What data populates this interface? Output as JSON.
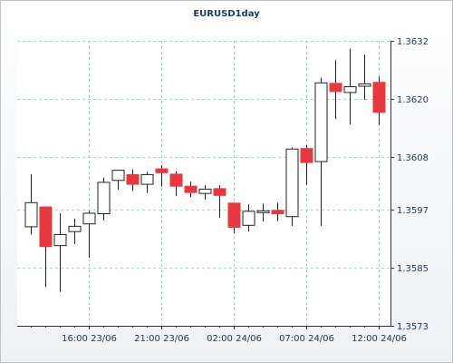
{
  "chart_data": {
    "type": "candlestick",
    "title": "EURUSD1day",
    "grid": true,
    "y_ticks": [
      1.3573,
      1.3585,
      1.3597,
      1.3608,
      1.362,
      1.3632
    ],
    "y_tick_labels": [
      "1.3573",
      "1.3585",
      "1.3597",
      "1.3608",
      "1.3620",
      "1.3632"
    ],
    "ylim": [
      1.3573,
      1.3632
    ],
    "x_tick_labels": [
      "16:00 23/06",
      "21:00 23/06",
      "02:00 24/06",
      "07:00 24/06",
      "12:00 24/06"
    ],
    "colors": {
      "up": "#ffffff",
      "down": "#e8383d",
      "border": "#222222",
      "grid": "#9fd6d8"
    },
    "candles": [
      {
        "o": 1.35935,
        "h": 1.36044,
        "l": 1.35919,
        "c": 1.35985
      },
      {
        "o": 1.35976,
        "h": 1.35977,
        "l": 1.3581,
        "c": 1.35894
      },
      {
        "o": 1.35896,
        "h": 1.35963,
        "l": 1.358,
        "c": 1.35919
      },
      {
        "o": 1.35925,
        "h": 1.35952,
        "l": 1.35899,
        "c": 1.35936
      },
      {
        "o": 1.35941,
        "h": 1.35968,
        "l": 1.35871,
        "c": 1.35963
      },
      {
        "o": 1.35962,
        "h": 1.36037,
        "l": 1.35948,
        "c": 1.36027
      },
      {
        "o": 1.36031,
        "h": 1.36053,
        "l": 1.36012,
        "c": 1.36052
      },
      {
        "o": 1.36043,
        "h": 1.36054,
        "l": 1.36009,
        "c": 1.36023
      },
      {
        "o": 1.36023,
        "h": 1.36049,
        "l": 1.36005,
        "c": 1.36043
      },
      {
        "o": 1.36055,
        "h": 1.36063,
        "l": 1.36018,
        "c": 1.36047
      },
      {
        "o": 1.36044,
        "h": 1.3605,
        "l": 1.35999,
        "c": 1.36019
      },
      {
        "o": 1.36019,
        "h": 1.36029,
        "l": 1.35996,
        "c": 1.36006
      },
      {
        "o": 1.36004,
        "h": 1.36021,
        "l": 1.35992,
        "c": 1.36013
      },
      {
        "o": 1.36014,
        "h": 1.36021,
        "l": 1.35954,
        "c": 1.36
      },
      {
        "o": 1.35984,
        "h": 1.35985,
        "l": 1.35922,
        "c": 1.35934
      },
      {
        "o": 1.35938,
        "h": 1.35982,
        "l": 1.35925,
        "c": 1.35967
      },
      {
        "o": 1.35965,
        "h": 1.35983,
        "l": 1.35946,
        "c": 1.35968
      },
      {
        "o": 1.35969,
        "h": 1.35985,
        "l": 1.35947,
        "c": 1.35962
      },
      {
        "o": 1.35956,
        "h": 1.36099,
        "l": 1.35937,
        "c": 1.36096
      },
      {
        "o": 1.36097,
        "h": 1.36104,
        "l": 1.36022,
        "c": 1.36068
      },
      {
        "o": 1.3607,
        "h": 1.36244,
        "l": 1.35937,
        "c": 1.36233
      },
      {
        "o": 1.36232,
        "h": 1.3628,
        "l": 1.36158,
        "c": 1.36215
      },
      {
        "o": 1.36213,
        "h": 1.36304,
        "l": 1.36147,
        "c": 1.36225
      },
      {
        "o": 1.36226,
        "h": 1.36291,
        "l": 1.36198,
        "c": 1.36231
      },
      {
        "o": 1.36234,
        "h": 1.36246,
        "l": 1.36145,
        "c": 1.36172
      }
    ]
  }
}
